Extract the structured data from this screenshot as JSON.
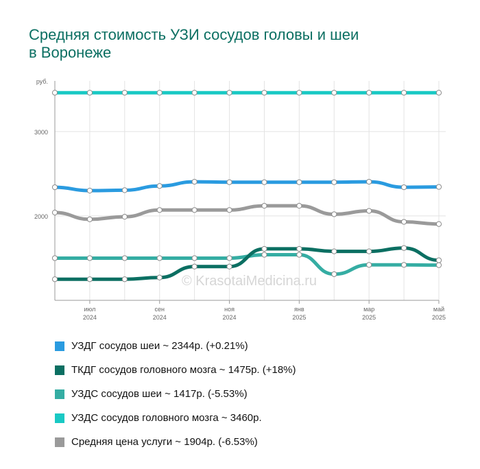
{
  "title_lines": [
    "Средняя стоимость УЗИ сосудов головы и шеи",
    "в Воронеже"
  ],
  "chart_data": {
    "type": "line",
    "y_unit_label": "руб.",
    "ylim": [
      1000,
      3600
    ],
    "y_ticks": [
      {
        "value": 3000,
        "label": "3000"
      },
      {
        "value": 2000,
        "label": "2000"
      }
    ],
    "x_points": [
      "2024-06",
      "2024-07",
      "2024-08",
      "2024-09",
      "2024-10",
      "2024-11",
      "2024-12",
      "2025-01",
      "2025-02",
      "2025-03",
      "2025-04",
      "2025-05"
    ],
    "x_tick_labels": [
      {
        "index": 1,
        "month": "июл",
        "year": "2024"
      },
      {
        "index": 3,
        "month": "сен",
        "year": "2024"
      },
      {
        "index": 5,
        "month": "ноя",
        "year": "2024"
      },
      {
        "index": 7,
        "month": "янв",
        "year": "2025"
      },
      {
        "index": 9,
        "month": "мар",
        "year": "2025"
      },
      {
        "index": 11,
        "month": "май",
        "year": "2025"
      }
    ],
    "grid": true,
    "series": [
      {
        "name": "УЗДС сосудов головного мозга",
        "color": "#19c9c4",
        "values": [
          3460,
          3460,
          3460,
          3460,
          3460,
          3460,
          3460,
          3460,
          3460,
          3460,
          3460,
          3460
        ]
      },
      {
        "name": "УЗДГ сосудов шеи",
        "color": "#2a9be0",
        "values": [
          2340,
          2300,
          2305,
          2355,
          2405,
          2400,
          2400,
          2400,
          2400,
          2405,
          2340,
          2344
        ]
      },
      {
        "name": "Средняя цена услуги",
        "color": "#9a9a9a",
        "values": [
          2040,
          1960,
          1990,
          2070,
          2070,
          2070,
          2120,
          2120,
          2020,
          2060,
          1930,
          1904
        ]
      },
      {
        "name": "УЗДС сосудов шеи",
        "color": "#35ada3",
        "values": [
          1500,
          1500,
          1500,
          1500,
          1500,
          1500,
          1540,
          1540,
          1310,
          1420,
          1420,
          1417
        ]
      },
      {
        "name": "ТКДГ сосудов головного мозга",
        "color": "#0b6f62",
        "values": [
          1250,
          1250,
          1250,
          1270,
          1400,
          1400,
          1610,
          1610,
          1580,
          1580,
          1620,
          1475
        ]
      }
    ],
    "watermark": "© KrasotaiMedicina.ru"
  },
  "legend": [
    {
      "label": "УЗДГ сосудов шеи ~ 2344р. (+0.21%)",
      "color": "#2a9be0"
    },
    {
      "label": "ТКДГ сосудов головного мозга ~ 1475р. (+18%)",
      "color": "#0b6f62"
    },
    {
      "label": "УЗДС сосудов шеи ~ 1417р. (-5.53%)",
      "color": "#35ada3"
    },
    {
      "label": "УЗДС сосудов головного мозга ~ 3460р.",
      "color": "#19c9c4"
    },
    {
      "label": "Средняя цена услуги ~ 1904р. (-6.53%)",
      "color": "#9a9a9a"
    }
  ]
}
